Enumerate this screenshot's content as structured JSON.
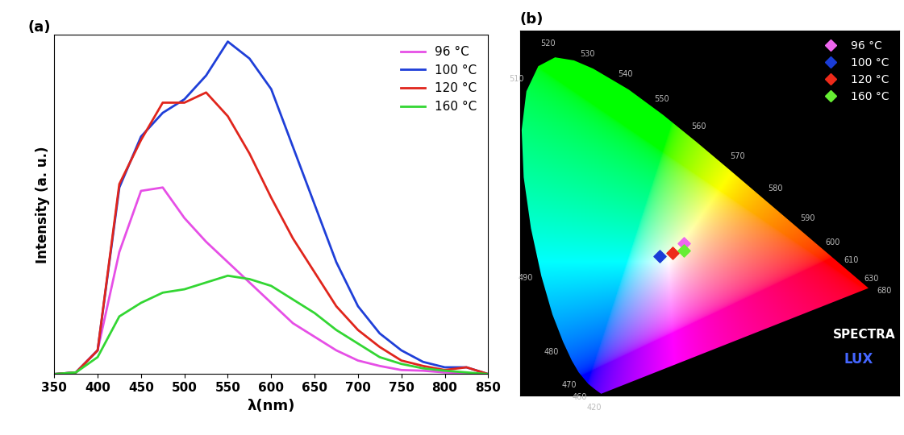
{
  "chart_data": [
    {
      "type": "line",
      "title": "(a)",
      "xlabel": "λ(nm)",
      "ylabel": "Intensity (a. u.)",
      "x": [
        350,
        375,
        400,
        425,
        450,
        475,
        500,
        525,
        550,
        575,
        600,
        625,
        650,
        675,
        700,
        725,
        750,
        775,
        800,
        825,
        850
      ],
      "series": [
        {
          "name": "96 °C",
          "color": "#e64fe6",
          "values": [
            0,
            0.5,
            7,
            36,
            54,
            55,
            46,
            39,
            33,
            27,
            21,
            15,
            11,
            7,
            4,
            2.4,
            1.2,
            1,
            0.5,
            0.3,
            0
          ]
        },
        {
          "name": "100 °C",
          "color": "#1f3fd8",
          "values": [
            0,
            0.5,
            7,
            55,
            70,
            77,
            81,
            88,
            98,
            93,
            84,
            67,
            50,
            33,
            20,
            12,
            7,
            3.6,
            2,
            2,
            0
          ]
        },
        {
          "name": "120 °C",
          "color": "#e0251c",
          "values": [
            0,
            0.5,
            7,
            56,
            69,
            80,
            80,
            83,
            76,
            65,
            52,
            40,
            30,
            20,
            13,
            8,
            4,
            2.4,
            1.2,
            2,
            0
          ]
        },
        {
          "name": "160 °C",
          "color": "#33d633",
          "values": [
            0,
            0.5,
            5,
            17,
            21,
            24,
            25,
            27,
            29,
            28,
            26,
            22,
            18,
            13,
            9,
            5,
            3,
            1.7,
            1,
            0.5,
            0
          ]
        }
      ],
      "xlim": [
        350,
        850
      ],
      "xticks": [
        350,
        400,
        450,
        500,
        550,
        600,
        650,
        700,
        750,
        800,
        850
      ],
      "ylim": [
        0,
        100
      ],
      "tick_labels": "x",
      "legend": "upper right"
    },
    {
      "type": "scatter",
      "title": "(b)",
      "series": [
        {
          "name": "96 °C",
          "color": "#ee66ee",
          "marker": "diamond",
          "x": [
            0.345
          ],
          "y": [
            0.375
          ]
        },
        {
          "name": "100 °C",
          "color": "#1a3cd6",
          "marker": "diamond",
          "x": [
            0.295
          ],
          "y": [
            0.345
          ]
        },
        {
          "name": "120 °C",
          "color": "#ee2a1a",
          "marker": "diamond",
          "x": [
            0.322
          ],
          "y": [
            0.352
          ]
        },
        {
          "name": "160 °C",
          "color": "#66ee33",
          "marker": "diamond",
          "x": [
            0.345
          ],
          "y": [
            0.357
          ]
        }
      ],
      "spectral_locus": {
        "labels": [
          "420",
          null,
          null,
          "460",
          "470",
          null,
          "480",
          null,
          "490",
          null,
          null,
          null,
          "510",
          null,
          "520",
          null,
          "530",
          "540",
          "550",
          "560",
          "570",
          "580",
          "590",
          "600",
          "610",
          "630",
          "680"
        ],
        "x": [
          0.1714,
          0.1644,
          0.1566,
          0.144,
          0.1241,
          0.1096,
          0.0913,
          0.0687,
          0.0454,
          0.0235,
          0.0082,
          0.0039,
          0.0139,
          0.0389,
          0.0743,
          0.1142,
          0.1547,
          0.2296,
          0.3016,
          0.3731,
          0.4441,
          0.5125,
          0.5752,
          0.627,
          0.6658,
          0.7079,
          0.7347
        ],
        "y": [
          0.0051,
          0.0109,
          0.0177,
          0.0297,
          0.0578,
          0.0868,
          0.1327,
          0.2007,
          0.295,
          0.4127,
          0.5384,
          0.6548,
          0.7502,
          0.812,
          0.8338,
          0.8262,
          0.8059,
          0.7543,
          0.6923,
          0.6245,
          0.5547,
          0.4866,
          0.4242,
          0.3725,
          0.334,
          0.292,
          0.2653
        ]
      },
      "annotations": [
        "SPECTRA",
        "LUX"
      ],
      "xlim": [
        0,
        0.8
      ],
      "ylim": [
        0,
        0.9
      ],
      "tick_labels": false,
      "legend": "upper right"
    }
  ]
}
